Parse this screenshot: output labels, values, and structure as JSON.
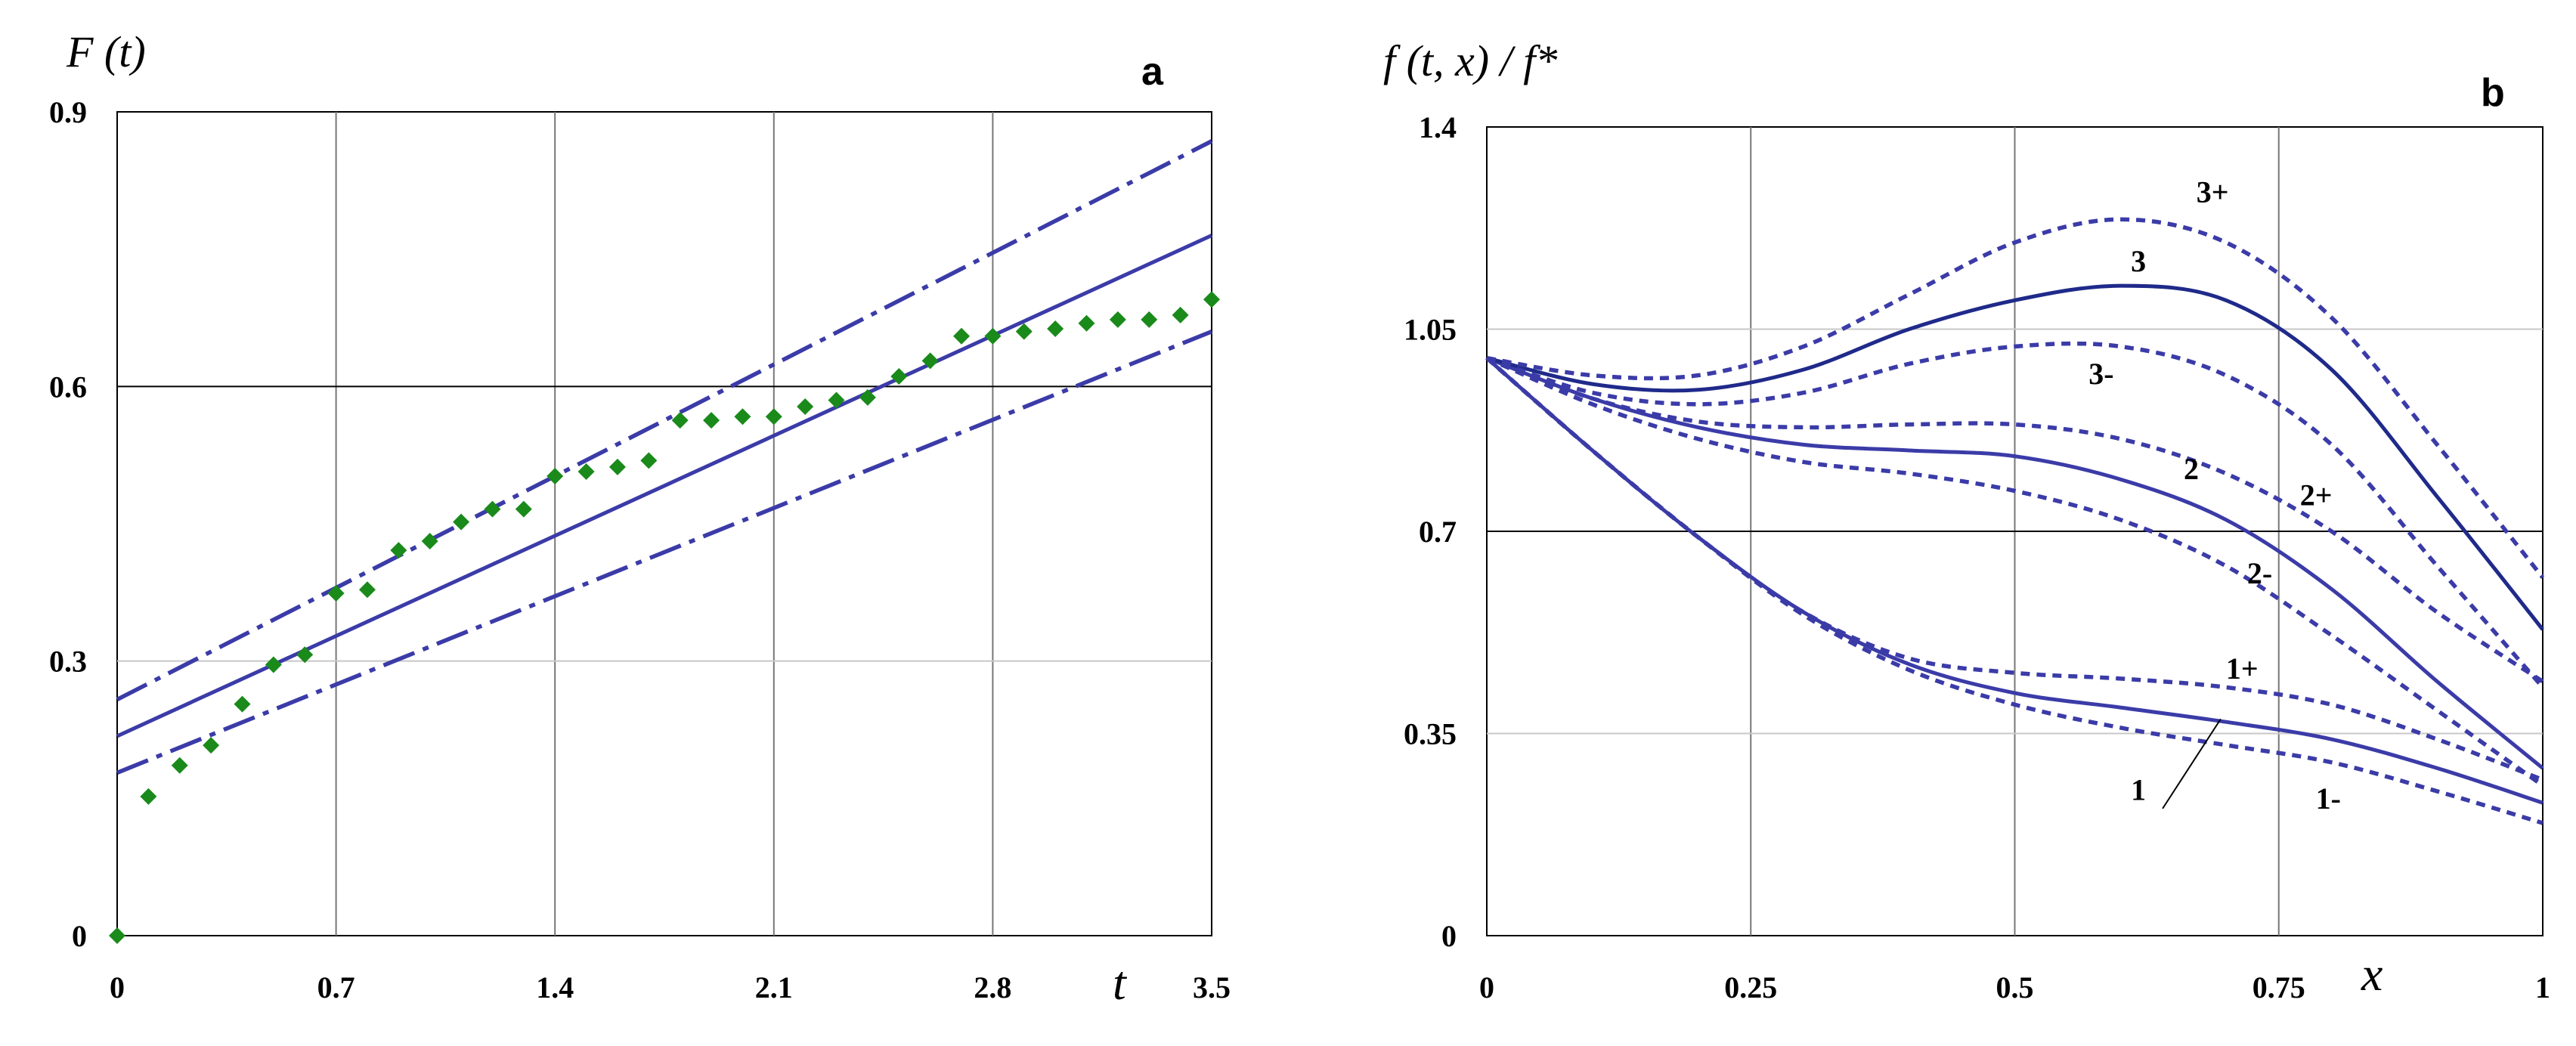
{
  "chart_data": [
    {
      "type": "line",
      "panel_label": "a",
      "ylabel": "F (t)",
      "xlabel": "t",
      "xlim": [
        0,
        3.5
      ],
      "ylim": [
        0,
        0.9
      ],
      "x_ticks": [
        "0",
        "0.7",
        "1.4",
        "2.1",
        "2.8",
        "3.5"
      ],
      "y_ticks": [
        "0",
        "0.3",
        "0.6",
        "0.9"
      ],
      "color_line": "#3b3ba8",
      "color_points": "#1a8a1a",
      "series": [
        {
          "name": "fit",
          "style": "solid",
          "x": [
            0,
            3.5
          ],
          "y": [
            0.218,
            0.765
          ]
        },
        {
          "name": "upper",
          "style": "dashdot",
          "x": [
            0,
            3.5
          ],
          "y": [
            0.258,
            0.868
          ]
        },
        {
          "name": "lower",
          "style": "dashdot",
          "x": [
            0,
            3.5
          ],
          "y": [
            0.178,
            0.66
          ]
        },
        {
          "name": "data",
          "style": "points",
          "x": [
            0,
            0.1,
            0.2,
            0.3,
            0.4,
            0.5,
            0.6,
            0.7,
            0.8,
            0.9,
            1.0,
            1.1,
            1.2,
            1.3,
            1.4,
            1.5,
            1.6,
            1.7,
            1.8,
            1.9,
            2.0,
            2.1,
            2.2,
            2.3,
            2.4,
            2.5,
            2.6,
            2.7,
            2.8,
            2.9,
            3.0,
            3.1,
            3.2,
            3.3,
            3.4,
            3.5
          ],
          "y": [
            0,
            0.152,
            0.186,
            0.208,
            0.253,
            0.296,
            0.307,
            0.374,
            0.378,
            0.421,
            0.431,
            0.452,
            0.466,
            0.466,
            0.502,
            0.507,
            0.512,
            0.519,
            0.563,
            0.563,
            0.567,
            0.567,
            0.578,
            0.585,
            0.588,
            0.611,
            0.628,
            0.655,
            0.655,
            0.66,
            0.663,
            0.669,
            0.673,
            0.673,
            0.678,
            0.695
          ]
        }
      ]
    },
    {
      "type": "line",
      "panel_label": "b",
      "ylabel": "f (t, x) / f*",
      "xlabel": "x",
      "xlim": [
        0,
        1
      ],
      "ylim": [
        0,
        1.4
      ],
      "x_ticks": [
        "0",
        "0.25",
        "0.5",
        "0.75",
        "1"
      ],
      "y_ticks": [
        "0",
        "0.35",
        "0.7",
        "1.05",
        "1.4"
      ],
      "color_line": "#3b3ba8",
      "color_line_dark": "#1f2a8a",
      "series": [
        {
          "name": "1",
          "style": "solid",
          "x": [
            0,
            0.1,
            0.2,
            0.3,
            0.4,
            0.5,
            0.6,
            0.7,
            0.8,
            0.9,
            1.0
          ],
          "y": [
            1.0,
            0.84,
            0.69,
            0.56,
            0.47,
            0.42,
            0.395,
            0.37,
            0.34,
            0.29,
            0.23
          ]
        },
        {
          "name": "1+",
          "style": "dashed",
          "x": [
            0,
            0.1,
            0.2,
            0.3,
            0.4,
            0.5,
            0.6,
            0.7,
            0.8,
            0.9,
            1.0
          ],
          "y": [
            1.0,
            0.84,
            0.69,
            0.56,
            0.48,
            0.455,
            0.445,
            0.43,
            0.4,
            0.34,
            0.27
          ]
        },
        {
          "name": "1-",
          "style": "dashed",
          "x": [
            0,
            0.1,
            0.2,
            0.3,
            0.4,
            0.5,
            0.6,
            0.7,
            0.8,
            0.9,
            1.0
          ],
          "y": [
            1.0,
            0.84,
            0.69,
            0.555,
            0.46,
            0.4,
            0.36,
            0.33,
            0.3,
            0.25,
            0.195
          ]
        },
        {
          "name": "2",
          "style": "solid",
          "x": [
            0,
            0.1,
            0.2,
            0.3,
            0.4,
            0.5,
            0.6,
            0.7,
            0.8,
            0.9,
            1.0
          ],
          "y": [
            1.0,
            0.93,
            0.88,
            0.85,
            0.84,
            0.83,
            0.79,
            0.72,
            0.6,
            0.44,
            0.29
          ]
        },
        {
          "name": "2+",
          "style": "dashed",
          "x": [
            0,
            0.1,
            0.2,
            0.3,
            0.4,
            0.5,
            0.6,
            0.7,
            0.8,
            0.9,
            1.0
          ],
          "y": [
            1.0,
            0.93,
            0.89,
            0.88,
            0.885,
            0.885,
            0.86,
            0.8,
            0.7,
            0.56,
            0.44
          ]
        },
        {
          "name": "2-",
          "style": "dashed",
          "x": [
            0,
            0.1,
            0.2,
            0.3,
            0.4,
            0.5,
            0.6,
            0.7,
            0.8,
            0.9,
            1.0
          ],
          "y": [
            1.0,
            0.92,
            0.86,
            0.82,
            0.8,
            0.77,
            0.72,
            0.64,
            0.52,
            0.39,
            0.26
          ]
        },
        {
          "name": "3",
          "style": "solid",
          "x": [
            0,
            0.1,
            0.2,
            0.3,
            0.4,
            0.5,
            0.6,
            0.7,
            0.8,
            0.9,
            1.0
          ],
          "y": [
            1.0,
            0.955,
            0.945,
            0.98,
            1.05,
            1.1,
            1.125,
            1.1,
            0.98,
            0.76,
            0.53
          ]
        },
        {
          "name": "3+",
          "style": "dashed",
          "x": [
            0,
            0.1,
            0.2,
            0.3,
            0.4,
            0.5,
            0.6,
            0.7,
            0.8,
            0.9,
            1.0
          ],
          "y": [
            1.0,
            0.97,
            0.97,
            1.02,
            1.11,
            1.2,
            1.24,
            1.2,
            1.07,
            0.85,
            0.62
          ]
        },
        {
          "name": "3-",
          "style": "dashed",
          "x": [
            0,
            0.1,
            0.2,
            0.3,
            0.4,
            0.5,
            0.6,
            0.7,
            0.8,
            0.9,
            1.0
          ],
          "y": [
            1.0,
            0.94,
            0.92,
            0.94,
            0.99,
            1.02,
            1.02,
            0.97,
            0.85,
            0.64,
            0.43
          ]
        }
      ],
      "curve_labels": [
        "3+",
        "3",
        "3-",
        "2",
        "2+",
        "2-",
        "1+",
        "1",
        "1-"
      ]
    }
  ]
}
